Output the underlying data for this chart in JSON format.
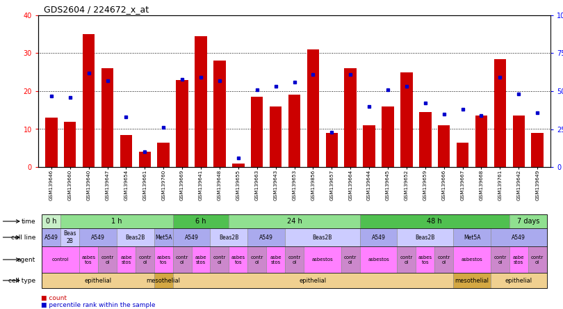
{
  "title": "GDS2604 / 224672_x_at",
  "samples": [
    "GSM139646",
    "GSM139660",
    "GSM139640",
    "GSM139647",
    "GSM139654",
    "GSM139661",
    "GSM139760",
    "GSM139669",
    "GSM139641",
    "GSM139648",
    "GSM139655",
    "GSM139663",
    "GSM139643",
    "GSM139653",
    "GSM139856",
    "GSM139657",
    "GSM139664",
    "GSM139644",
    "GSM139645",
    "GSM139652",
    "GSM139659",
    "GSM139666",
    "GSM139667",
    "GSM139668",
    "GSM139761",
    "GSM139642",
    "GSM139649"
  ],
  "counts": [
    13,
    12,
    35,
    26,
    8.5,
    4,
    6.5,
    23,
    34.5,
    28,
    1,
    18.5,
    16,
    19,
    31,
    9,
    26,
    11,
    16,
    25,
    14.5,
    11,
    6.5,
    13.5,
    28.5,
    13.5,
    9
  ],
  "percentiles": [
    47,
    46,
    62,
    57,
    33,
    10,
    26,
    58,
    59,
    57,
    6,
    51,
    53,
    56,
    61,
    23,
    61,
    40,
    51,
    53,
    42,
    35,
    38,
    34,
    59,
    48,
    36
  ],
  "bar_color": "#cc0000",
  "dot_color": "#0000cc",
  "time_groups": [
    {
      "label": "0 h",
      "start": 0,
      "end": 1,
      "color": "#c8efc8"
    },
    {
      "label": "1 h",
      "start": 1,
      "end": 7,
      "color": "#90e090"
    },
    {
      "label": "6 h",
      "start": 7,
      "end": 10,
      "color": "#50c050"
    },
    {
      "label": "24 h",
      "start": 10,
      "end": 17,
      "color": "#90e090"
    },
    {
      "label": "48 h",
      "start": 17,
      "end": 25,
      "color": "#50c050"
    },
    {
      "label": "7 days",
      "start": 25,
      "end": 27,
      "color": "#90e090"
    }
  ],
  "cellline_groups": [
    {
      "label": "A549",
      "start": 0,
      "end": 1,
      "color": "#aaaaee"
    },
    {
      "label": "Beas\n2B",
      "start": 1,
      "end": 2,
      "color": "#ccccff"
    },
    {
      "label": "A549",
      "start": 2,
      "end": 4,
      "color": "#aaaaee"
    },
    {
      "label": "Beas2B",
      "start": 4,
      "end": 6,
      "color": "#ccccff"
    },
    {
      "label": "Met5A",
      "start": 6,
      "end": 7,
      "color": "#aaaaee"
    },
    {
      "label": "A549",
      "start": 7,
      "end": 9,
      "color": "#aaaaee"
    },
    {
      "label": "Beas2B",
      "start": 9,
      "end": 11,
      "color": "#ccccff"
    },
    {
      "label": "A549",
      "start": 11,
      "end": 13,
      "color": "#aaaaee"
    },
    {
      "label": "Beas2B",
      "start": 13,
      "end": 17,
      "color": "#ccccff"
    },
    {
      "label": "A549",
      "start": 17,
      "end": 19,
      "color": "#aaaaee"
    },
    {
      "label": "Beas2B",
      "start": 19,
      "end": 22,
      "color": "#ccccff"
    },
    {
      "label": "Met5A",
      "start": 22,
      "end": 24,
      "color": "#aaaaee"
    },
    {
      "label": "A549",
      "start": 24,
      "end": 27,
      "color": "#aaaaee"
    }
  ],
  "agent_groups": [
    {
      "label": "control",
      "start": 0,
      "end": 2,
      "color": "#ff80ff"
    },
    {
      "label": "asbes\ntos",
      "start": 2,
      "end": 3,
      "color": "#ff80ff"
    },
    {
      "label": "contr\nol",
      "start": 3,
      "end": 4,
      "color": "#cc88cc"
    },
    {
      "label": "asbe\nstos",
      "start": 4,
      "end": 5,
      "color": "#ff80ff"
    },
    {
      "label": "contr\nol",
      "start": 5,
      "end": 6,
      "color": "#cc88cc"
    },
    {
      "label": "asbes\ntos",
      "start": 6,
      "end": 7,
      "color": "#ff80ff"
    },
    {
      "label": "contr\nol",
      "start": 7,
      "end": 8,
      "color": "#cc88cc"
    },
    {
      "label": "asbe\nstos",
      "start": 8,
      "end": 9,
      "color": "#ff80ff"
    },
    {
      "label": "contr\nol",
      "start": 9,
      "end": 10,
      "color": "#cc88cc"
    },
    {
      "label": "asbes\ntos",
      "start": 10,
      "end": 11,
      "color": "#ff80ff"
    },
    {
      "label": "contr\nol",
      "start": 11,
      "end": 12,
      "color": "#cc88cc"
    },
    {
      "label": "asbe\nstos",
      "start": 12,
      "end": 13,
      "color": "#ff80ff"
    },
    {
      "label": "contr\nol",
      "start": 13,
      "end": 14,
      "color": "#cc88cc"
    },
    {
      "label": "asbestos",
      "start": 14,
      "end": 16,
      "color": "#ff80ff"
    },
    {
      "label": "contr\nol",
      "start": 16,
      "end": 17,
      "color": "#cc88cc"
    },
    {
      "label": "asbestos",
      "start": 17,
      "end": 19,
      "color": "#ff80ff"
    },
    {
      "label": "contr\nol",
      "start": 19,
      "end": 20,
      "color": "#cc88cc"
    },
    {
      "label": "asbes\ntos",
      "start": 20,
      "end": 21,
      "color": "#ff80ff"
    },
    {
      "label": "contr\nol",
      "start": 21,
      "end": 22,
      "color": "#cc88cc"
    },
    {
      "label": "asbestos",
      "start": 22,
      "end": 24,
      "color": "#ff80ff"
    },
    {
      "label": "contr\nol",
      "start": 24,
      "end": 25,
      "color": "#cc88cc"
    },
    {
      "label": "asbe\nstos",
      "start": 25,
      "end": 26,
      "color": "#ff80ff"
    },
    {
      "label": "contr\nol",
      "start": 26,
      "end": 27,
      "color": "#cc88cc"
    }
  ],
  "celltype_groups": [
    {
      "label": "epithelial",
      "start": 0,
      "end": 6,
      "color": "#f0d090"
    },
    {
      "label": "mesothelial",
      "start": 6,
      "end": 7,
      "color": "#d4a843"
    },
    {
      "label": "epithelial",
      "start": 7,
      "end": 22,
      "color": "#f0d090"
    },
    {
      "label": "mesothelial",
      "start": 22,
      "end": 24,
      "color": "#d4a843"
    },
    {
      "label": "epithelial",
      "start": 24,
      "end": 27,
      "color": "#f0d090"
    }
  ]
}
